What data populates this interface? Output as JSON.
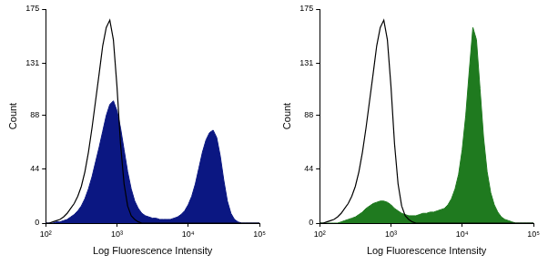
{
  "chart_data": [
    {
      "type": "line",
      "x_label": "Log Fluorescence Intensity",
      "y_label": "Count",
      "log": "x",
      "grid": false,
      "xlim": [
        100,
        100000
      ],
      "xticks": [
        {
          "value": 100,
          "label": "10²"
        },
        {
          "value": 1000,
          "label": "10³"
        },
        {
          "value": 10000,
          "label": "10⁴"
        },
        {
          "value": 100000,
          "label": "10⁵"
        }
      ],
      "ylim": [
        0,
        175
      ],
      "yticks": [
        0,
        44,
        88,
        131,
        175
      ],
      "x": [
        100,
        112,
        126,
        141,
        158,
        178,
        200,
        224,
        251,
        282,
        316,
        355,
        398,
        447,
        501,
        562,
        631,
        708,
        794,
        891,
        1000,
        1122,
        1259,
        1413,
        1585,
        1778,
        1995,
        2239,
        2512,
        2818,
        3162,
        3548,
        3981,
        4467,
        5012,
        5623,
        6310,
        7079,
        7943,
        8913,
        10000,
        11220,
        12589,
        14125,
        15849,
        17783,
        19953,
        22387,
        25119,
        28184,
        31623,
        35481,
        39811,
        44668,
        50119,
        56234,
        63096,
        70795,
        79433,
        89125,
        100000
      ],
      "series": [
        {
          "type": "line",
          "color": "#000000",
          "values": [
            0,
            0,
            1,
            2,
            3,
            5,
            8,
            12,
            16,
            22,
            30,
            42,
            58,
            78,
            100,
            122,
            145,
            160,
            166,
            150,
            112,
            65,
            32,
            14,
            6,
            3,
            1,
            0,
            0,
            0,
            0,
            0,
            0,
            0,
            0,
            0,
            0,
            0,
            0,
            0,
            0,
            0,
            0,
            0,
            0,
            0,
            0,
            0,
            0,
            0,
            0,
            0,
            0,
            0,
            0,
            0,
            0,
            0,
            0,
            0,
            0
          ]
        },
        {
          "type": "area",
          "color": "#0b1782",
          "values": [
            0,
            0,
            0,
            1,
            1,
            2,
            3,
            5,
            7,
            10,
            14,
            20,
            28,
            38,
            50,
            62,
            75,
            88,
            97,
            100,
            92,
            78,
            60,
            42,
            28,
            18,
            12,
            8,
            6,
            5,
            4,
            4,
            3,
            3,
            3,
            3,
            4,
            5,
            7,
            10,
            15,
            22,
            32,
            45,
            58,
            68,
            74,
            76,
            70,
            55,
            35,
            18,
            8,
            3,
            1,
            0,
            0,
            0,
            0,
            0,
            0
          ]
        }
      ]
    },
    {
      "type": "line",
      "x_label": "Log Fluorescence Intensity",
      "y_label": "Count",
      "log": "x",
      "grid": false,
      "xlim": [
        100,
        100000
      ],
      "xticks": [
        {
          "value": 100,
          "label": "10²"
        },
        {
          "value": 1000,
          "label": "10³"
        },
        {
          "value": 10000,
          "label": "10⁴"
        },
        {
          "value": 100000,
          "label": "10⁵"
        }
      ],
      "ylim": [
        0,
        175
      ],
      "yticks": [
        0,
        44,
        88,
        131,
        175
      ],
      "x": [
        100,
        112,
        126,
        141,
        158,
        178,
        200,
        224,
        251,
        282,
        316,
        355,
        398,
        447,
        501,
        562,
        631,
        708,
        794,
        891,
        1000,
        1122,
        1259,
        1413,
        1585,
        1778,
        1995,
        2239,
        2512,
        2818,
        3162,
        3548,
        3981,
        4467,
        5012,
        5623,
        6310,
        7079,
        7943,
        8913,
        10000,
        11220,
        12589,
        14125,
        15849,
        17783,
        19953,
        22387,
        25119,
        28184,
        31623,
        35481,
        39811,
        44668,
        50119,
        56234,
        63096,
        70795,
        79433,
        89125,
        100000
      ],
      "series": [
        {
          "type": "line",
          "color": "#000000",
          "values": [
            0,
            0,
            1,
            2,
            3,
            5,
            8,
            12,
            16,
            22,
            30,
            42,
            58,
            78,
            100,
            122,
            145,
            160,
            166,
            150,
            112,
            65,
            32,
            14,
            6,
            3,
            1,
            0,
            0,
            0,
            0,
            0,
            0,
            0,
            0,
            0,
            0,
            0,
            0,
            0,
            0,
            0,
            0,
            0,
            0,
            0,
            0,
            0,
            0,
            0,
            0,
            0,
            0,
            0,
            0,
            0,
            0,
            0,
            0,
            0,
            0
          ]
        },
        {
          "type": "area",
          "color": "#1f7a1f",
          "values": [
            0,
            0,
            0,
            0,
            0,
            0,
            1,
            2,
            3,
            4,
            5,
            7,
            9,
            12,
            14,
            16,
            17,
            18,
            18,
            17,
            15,
            12,
            10,
            8,
            7,
            6,
            6,
            6,
            7,
            8,
            8,
            9,
            9,
            10,
            11,
            12,
            15,
            20,
            28,
            40,
            60,
            88,
            125,
            160,
            150,
            110,
            70,
            42,
            25,
            15,
            9,
            5,
            3,
            2,
            1,
            0,
            0,
            0,
            0,
            0,
            0
          ]
        }
      ]
    }
  ]
}
